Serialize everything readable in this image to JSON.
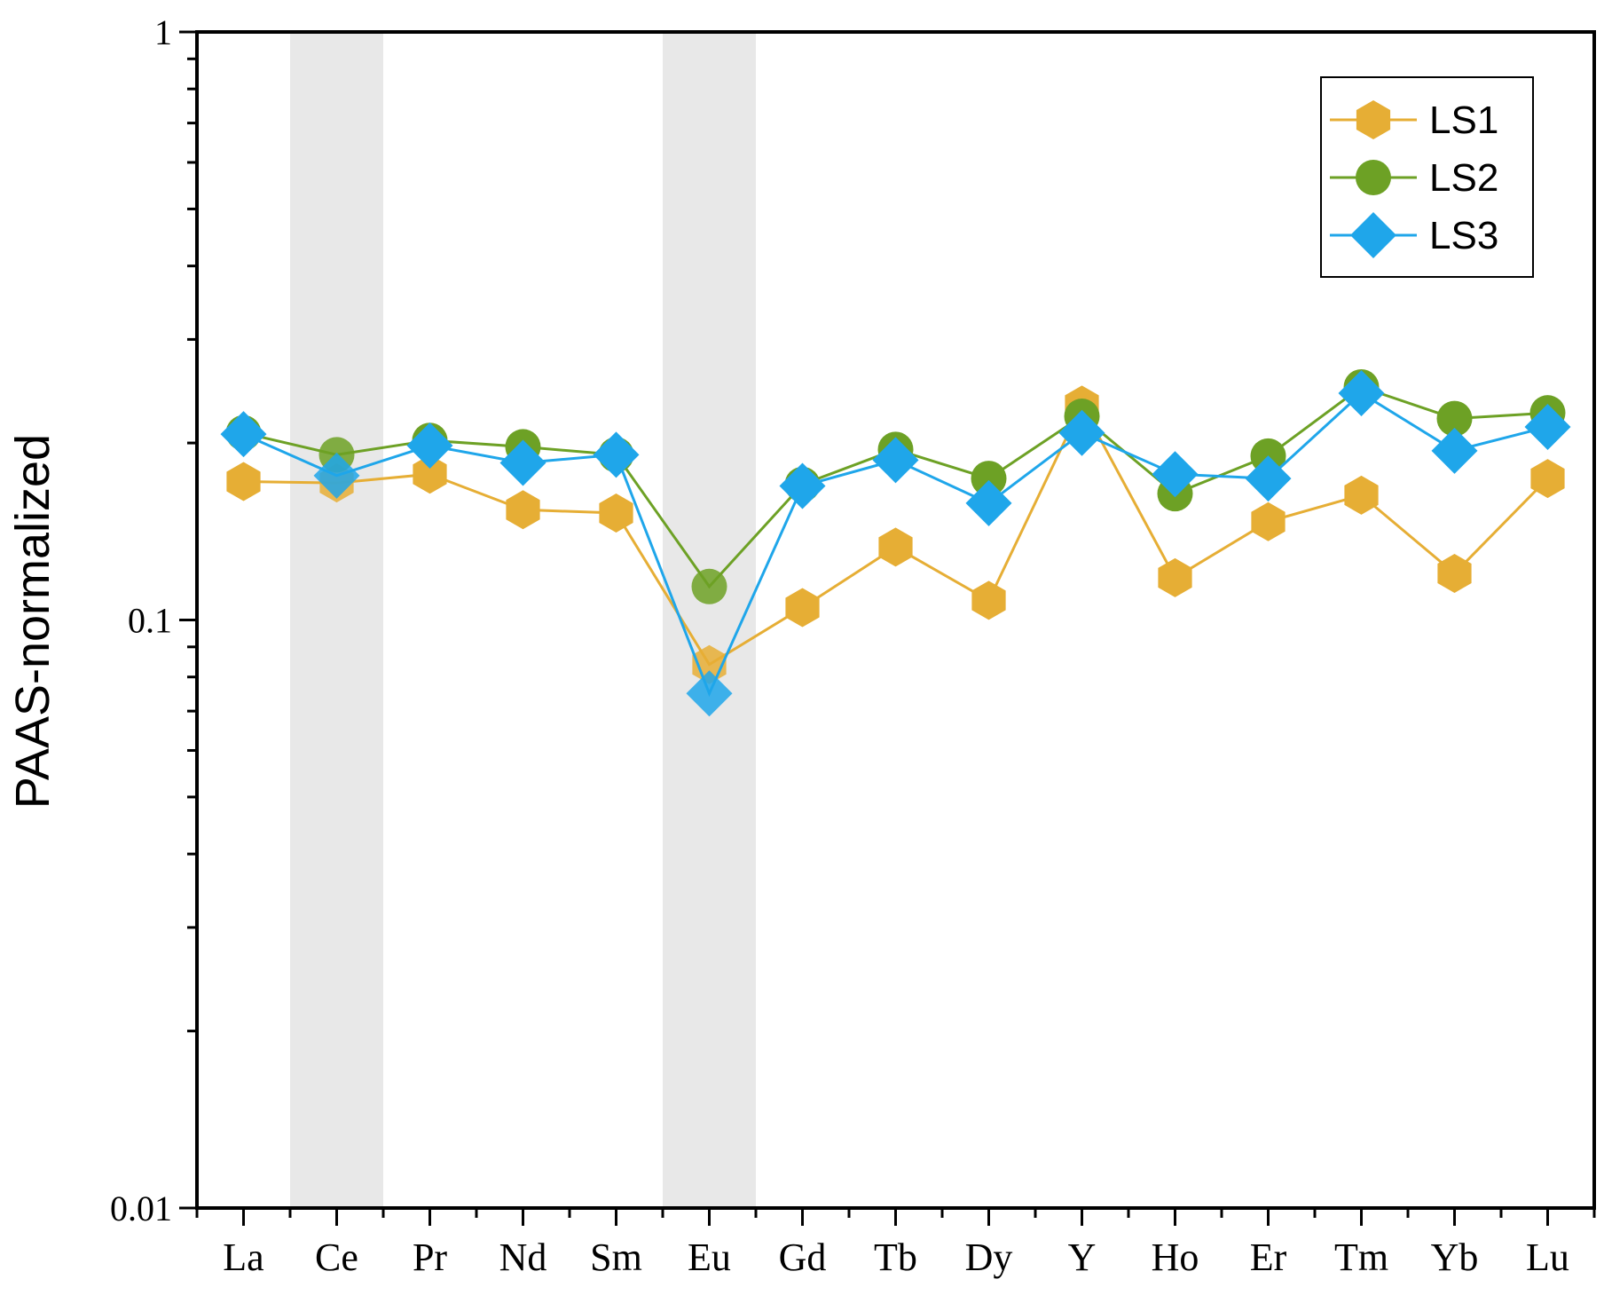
{
  "chart_data": {
    "type": "line",
    "title": "",
    "xlabel": "",
    "ylabel": "PAAS-normalized",
    "yscale": "log",
    "ylim": [
      0.01,
      1
    ],
    "yticks": [
      {
        "value": 1,
        "label": "1"
      },
      {
        "value": 0.1,
        "label": "0.1"
      },
      {
        "value": 0.01,
        "label": "0.01"
      }
    ],
    "categories": [
      "La",
      "Ce",
      "Pr",
      "Nd",
      "Sm",
      "Eu",
      "Gd",
      "Tb",
      "Dy",
      "Y",
      "Ho",
      "Er",
      "Tm",
      "Yb",
      "Lu"
    ],
    "shaded_categories": [
      "Ce",
      "Eu"
    ],
    "legend_position": "top-right",
    "series": [
      {
        "name": "LS1",
        "marker": "hexagon",
        "color": "#E6AE35",
        "values": [
          0.172,
          0.171,
          0.177,
          0.154,
          0.152,
          0.084,
          0.105,
          0.133,
          0.108,
          0.232,
          0.118,
          0.147,
          0.163,
          0.12,
          0.174
        ]
      },
      {
        "name": "LS2",
        "marker": "circle",
        "color": "#6DA125",
        "values": [
          0.208,
          0.191,
          0.202,
          0.197,
          0.191,
          0.114,
          0.17,
          0.195,
          0.174,
          0.222,
          0.164,
          0.19,
          0.249,
          0.22,
          0.225
        ]
      },
      {
        "name": "LS3",
        "marker": "diamond",
        "color": "#1FA6EA",
        "values": [
          0.207,
          0.176,
          0.198,
          0.185,
          0.191,
          0.075,
          0.169,
          0.187,
          0.158,
          0.208,
          0.177,
          0.174,
          0.243,
          0.194,
          0.213
        ]
      }
    ]
  }
}
